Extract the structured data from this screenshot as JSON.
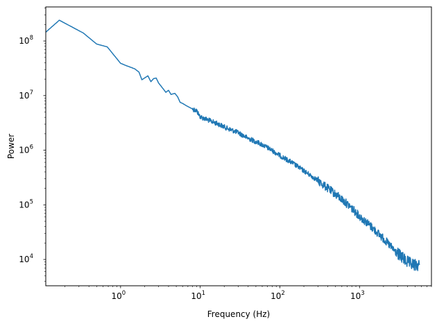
{
  "chart_data": {
    "type": "line",
    "title": "",
    "xlabel": "Frequency (Hz)",
    "ylabel": "Power",
    "xscale": "log",
    "yscale": "log",
    "xlim": [
      0.115,
      8000
    ],
    "ylim": [
      3300,
      420000000
    ],
    "grid": false,
    "legend": "none",
    "line_color": "#1f77b4",
    "x_ticks": [
      {
        "value": 1,
        "base": "10",
        "exp": "0"
      },
      {
        "value": 10,
        "base": "10",
        "exp": "1"
      },
      {
        "value": 100,
        "base": "10",
        "exp": "2"
      },
      {
        "value": 1000,
        "base": "10",
        "exp": "3"
      }
    ],
    "y_ticks": [
      {
        "value": 10000,
        "base": "10",
        "exp": "4"
      },
      {
        "value": 100000,
        "base": "10",
        "exp": "5"
      },
      {
        "value": 1000000,
        "base": "10",
        "exp": "6"
      },
      {
        "value": 10000000,
        "base": "10",
        "exp": "7"
      },
      {
        "value": 100000000,
        "base": "10",
        "exp": "8"
      }
    ],
    "series": [
      {
        "values": [
          [
            0.115,
            145000000
          ],
          [
            0.17,
            240000000
          ],
          [
            0.34,
            140000000
          ],
          [
            0.5,
            88000000
          ],
          [
            0.68,
            78000000
          ],
          [
            1.0,
            39000000
          ],
          [
            1.2,
            35000000
          ],
          [
            1.5,
            31000000
          ],
          [
            1.7,
            27000000
          ],
          [
            1.85,
            19500000
          ],
          [
            2.0,
            21000000
          ],
          [
            2.2,
            23000000
          ],
          [
            2.4,
            18000000
          ],
          [
            2.6,
            20500000
          ],
          [
            2.8,
            21000000
          ],
          [
            3.0,
            17000000
          ],
          [
            3.4,
            13500000
          ],
          [
            3.7,
            11500000
          ],
          [
            4.0,
            12500000
          ],
          [
            4.3,
            10500000
          ],
          [
            4.8,
            11000000
          ],
          [
            5.2,
            9500000
          ],
          [
            5.6,
            7500000
          ],
          [
            6.0,
            7200000
          ],
          [
            6.5,
            6700000
          ],
          [
            7.0,
            6300000
          ],
          [
            8.0,
            5700000
          ],
          [
            9.0,
            5300000
          ],
          [
            10,
            4100000
          ],
          [
            13,
            3500000
          ],
          [
            17,
            3000000
          ],
          [
            22,
            2500000
          ],
          [
            30,
            2100000
          ],
          [
            40,
            1650000
          ],
          [
            55,
            1350000
          ],
          [
            75,
            1050000
          ],
          [
            100,
            800000
          ],
          [
            140,
            600000
          ],
          [
            200,
            420000
          ],
          [
            280,
            300000
          ],
          [
            400,
            200000
          ],
          [
            550,
            140000
          ],
          [
            750,
            95000
          ],
          [
            1000,
            62000
          ],
          [
            1400,
            40000
          ],
          [
            2000,
            24000
          ],
          [
            2800,
            14000
          ],
          [
            3500,
            10500
          ],
          [
            4200,
            8500
          ],
          [
            5000,
            7800
          ],
          [
            5700,
            8000
          ]
        ]
      }
    ]
  }
}
